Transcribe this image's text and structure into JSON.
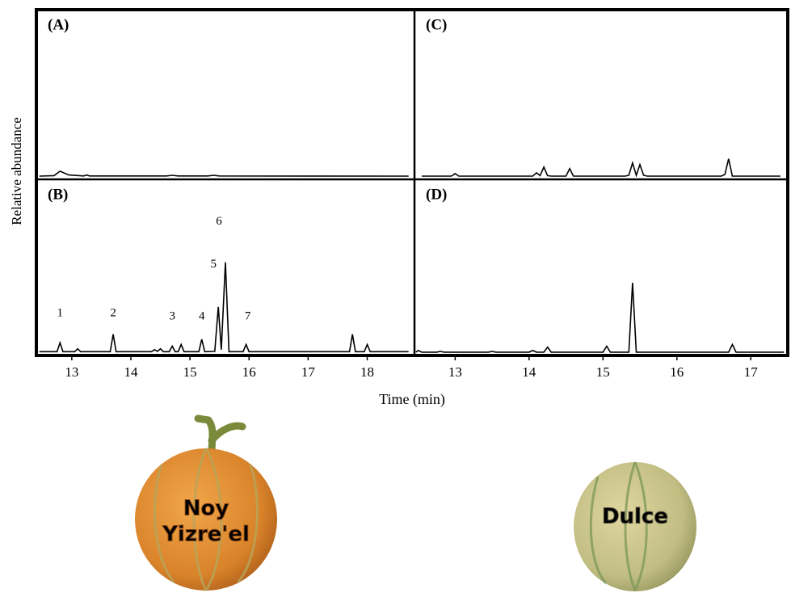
{
  "axis_labels": {
    "y": "Relative abundance",
    "x": "Time (min)"
  },
  "melons": [
    {
      "lines": [
        "Noy",
        "Yizre'el"
      ]
    },
    {
      "lines": [
        "Dulce"
      ]
    }
  ],
  "chart_data": [
    {
      "type": "line",
      "title": "(A)",
      "color": "#000000",
      "xlim": [
        12.4,
        18.8
      ],
      "ylim": [
        0,
        100
      ],
      "x": [
        12.45,
        12.7,
        12.8,
        12.95,
        13.2,
        13.25,
        13.3,
        14.6,
        14.7,
        14.8,
        15.3,
        15.4,
        15.5,
        18.7
      ],
      "values": [
        0.5,
        0.8,
        3.5,
        1.2,
        0.6,
        1.2,
        0.6,
        0.6,
        1,
        0.6,
        0.6,
        1,
        0.6,
        0.5
      ]
    },
    {
      "type": "line",
      "title": "(C)",
      "color": "#000000",
      "xlim": [
        12.45,
        17.5
      ],
      "ylim": [
        0,
        100
      ],
      "x": [
        12.55,
        12.95,
        13.0,
        13.05,
        14.05,
        14.1,
        14.15,
        14.2,
        14.25,
        14.3,
        14.5,
        14.55,
        14.6,
        15.3,
        15.35,
        15.4,
        15.45,
        15.5,
        15.55,
        15.6,
        16.6,
        16.65,
        16.7,
        16.75,
        17.4
      ],
      "values": [
        0.5,
        0.5,
        2,
        0.5,
        0.5,
        2.5,
        0.8,
        6,
        0.8,
        0.5,
        0.5,
        5,
        0.5,
        0.5,
        1,
        8.5,
        1,
        7.5,
        1,
        0.5,
        0.5,
        1.5,
        11,
        0.5,
        0.5
      ]
    },
    {
      "type": "line",
      "title": "(B)",
      "color": "#000000",
      "xlim": [
        12.4,
        18.8
      ],
      "ylim": [
        0,
        100
      ],
      "xticks": [
        13,
        14,
        15,
        16,
        17,
        18
      ],
      "annotations": [
        "1",
        "2",
        "3",
        "4",
        "5",
        "6",
        "7"
      ],
      "x": [
        12.45,
        12.75,
        12.8,
        12.85,
        13.05,
        13.1,
        13.15,
        13.65,
        13.7,
        13.75,
        14.35,
        14.4,
        14.45,
        14.5,
        14.55,
        14.65,
        14.7,
        14.75,
        14.8,
        14.85,
        14.9,
        15.15,
        15.2,
        15.25,
        15.42,
        15.48,
        15.53,
        15.6,
        15.66,
        15.9,
        15.95,
        16.0,
        17.7,
        17.75,
        17.8,
        17.95,
        18.0,
        18.05,
        18.7
      ],
      "values": [
        0.8,
        0.8,
        6,
        0.8,
        0.8,
        2.5,
        0.8,
        0.8,
        11,
        0.8,
        0.8,
        2,
        1,
        2.5,
        0.8,
        0.8,
        4,
        0.8,
        0.8,
        5,
        0.8,
        0.8,
        8,
        0.8,
        1,
        27,
        2,
        53,
        0.8,
        0.8,
        5,
        0.8,
        0.8,
        11,
        0.8,
        0.8,
        5,
        0.8,
        0.8
      ]
    },
    {
      "type": "line",
      "title": "(D)",
      "color": "#000000",
      "xlim": [
        12.45,
        17.5
      ],
      "ylim": [
        0,
        100
      ],
      "xticks": [
        13,
        14,
        15,
        16,
        17
      ],
      "x": [
        12.47,
        12.5,
        12.55,
        12.75,
        12.8,
        12.85,
        13.45,
        13.5,
        13.55,
        14.0,
        14.05,
        14.1,
        14.2,
        14.25,
        14.3,
        15.0,
        15.05,
        15.1,
        15.35,
        15.4,
        15.45,
        16.7,
        16.75,
        16.8,
        17.45
      ],
      "values": [
        0.5,
        1.5,
        0.5,
        0.5,
        1,
        0.5,
        0.5,
        1,
        0.5,
        0.5,
        1.5,
        0.5,
        0.5,
        3.5,
        0.5,
        0.5,
        4,
        0.5,
        0.5,
        41,
        0.5,
        0.5,
        5,
        0.5,
        0.5
      ]
    }
  ]
}
